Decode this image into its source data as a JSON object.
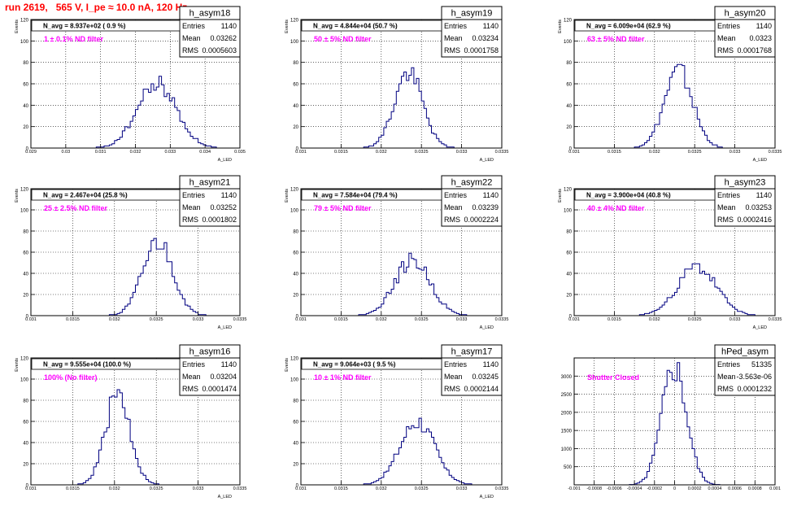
{
  "page_title": "run 2619,   565 V, I_pe ≈ 10.0 nA, 120 Hz",
  "colors": {
    "title": "#ff0000",
    "filter_text": "#ff00ff",
    "histogram": "#000080",
    "grid": "#000000",
    "frame": "#000000",
    "background": "#ffffff"
  },
  "chart_data": [
    {
      "type": "bar",
      "name": "h_asym18",
      "navg": "N_avg = 8.937e+02 ( 0.9 %)",
      "filter": "1 ± 0.1% ND filter",
      "stats": [
        [
          "Entries",
          "1140"
        ],
        [
          "Mean",
          "0.03262"
        ],
        [
          "RMS",
          "0.0005603"
        ]
      ],
      "ylabel": "Events",
      "xlabel": "A_LED",
      "xlim": [
        0.029,
        0.035
      ],
      "ylim": [
        0,
        120
      ],
      "yticks": [
        0,
        20,
        40,
        60,
        80,
        100,
        120
      ],
      "xticks": [
        "0.029",
        "0.03",
        "0.031",
        "0.032",
        "0.033",
        "0.034",
        "0.035"
      ],
      "xtick_values": [
        0.029,
        0.03,
        0.031,
        0.032,
        0.033,
        0.034,
        0.035
      ],
      "mean": 0.03262,
      "sigma": 0.0005603,
      "peak": 60,
      "seed": 18,
      "grid": true
    },
    {
      "type": "bar",
      "name": "h_asym19",
      "navg": "N_avg = 4.844e+04 (50.7 %)",
      "filter": "50 ± 5% ND filter",
      "stats": [
        [
          "Entries",
          "1140"
        ],
        [
          "Mean",
          "0.03234"
        ],
        [
          "RMS",
          "0.0001758"
        ]
      ],
      "ylabel": "Events",
      "xlabel": "A_LED",
      "xlim": [
        0.031,
        0.0335
      ],
      "ylim": [
        0,
        120
      ],
      "yticks": [
        0,
        20,
        40,
        60,
        80,
        100,
        120
      ],
      "xticks": [
        "0.031",
        "0.0315",
        "0.032",
        "0.0325",
        "0.033",
        "0.0335"
      ],
      "xtick_values": [
        0.031,
        0.0315,
        0.032,
        0.0325,
        0.033,
        0.0335
      ],
      "mean": 0.03234,
      "sigma": 0.0001758,
      "peak": 70,
      "seed": 19,
      "grid": true
    },
    {
      "type": "bar",
      "name": "h_asym20",
      "navg": "N_avg = 6.009e+04 (62.9 %)",
      "filter": "63 ± 5% ND filter",
      "stats": [
        [
          "Entries",
          "1140"
        ],
        [
          "Mean",
          "0.0323"
        ],
        [
          "RMS",
          "0.0001768"
        ]
      ],
      "ylabel": "Events",
      "xlabel": "A_LED",
      "xlim": [
        0.031,
        0.0335
      ],
      "ylim": [
        0,
        120
      ],
      "yticks": [
        0,
        20,
        40,
        60,
        80,
        100,
        120
      ],
      "xticks": [
        "0.031",
        "0.0315",
        "0.032",
        "0.0325",
        "0.033",
        "0.0335"
      ],
      "xtick_values": [
        0.031,
        0.0315,
        0.032,
        0.0325,
        0.033,
        0.0335
      ],
      "mean": 0.0323,
      "sigma": 0.0001768,
      "peak": 72,
      "seed": 20,
      "grid": true
    },
    {
      "type": "bar",
      "name": "h_asym21",
      "navg": "N_avg = 2.467e+04 (25.8 %)",
      "filter": "25 ± 2.5% ND filter",
      "stats": [
        [
          "Entries",
          "1140"
        ],
        [
          "Mean",
          "0.03252"
        ],
        [
          "RMS",
          "0.0001802"
        ]
      ],
      "ylabel": "Events",
      "xlabel": "A_LED",
      "xlim": [
        0.031,
        0.0335
      ],
      "ylim": [
        0,
        120
      ],
      "yticks": [
        0,
        20,
        40,
        60,
        80,
        100,
        120
      ],
      "xticks": [
        "0.031",
        "0.0315",
        "0.032",
        "0.0325",
        "0.033",
        "0.0335"
      ],
      "xtick_values": [
        0.031,
        0.0315,
        0.032,
        0.0325,
        0.033,
        0.0335
      ],
      "mean": 0.03252,
      "sigma": 0.0001802,
      "peak": 70,
      "seed": 21,
      "grid": true
    },
    {
      "type": "bar",
      "name": "h_asym22",
      "navg": "N_avg = 7.584e+04 (79.4 %)",
      "filter": "79 ± 5% ND filter",
      "stats": [
        [
          "Entries",
          "1140"
        ],
        [
          "Mean",
          "0.03239"
        ],
        [
          "RMS",
          "0.0002224"
        ]
      ],
      "ylabel": "Events",
      "xlabel": "A_LED",
      "xlim": [
        0.031,
        0.0335
      ],
      "ylim": [
        0,
        120
      ],
      "yticks": [
        0,
        20,
        40,
        60,
        80,
        100,
        120
      ],
      "xticks": [
        "0.031",
        "0.0315",
        "0.032",
        "0.0325",
        "0.033",
        "0.0335"
      ],
      "xtick_values": [
        0.031,
        0.0315,
        0.032,
        0.0325,
        0.033,
        0.0335
      ],
      "mean": 0.03239,
      "sigma": 0.0002224,
      "peak": 52,
      "seed": 22,
      "grid": true
    },
    {
      "type": "bar",
      "name": "h_asym23",
      "navg": "N_avg = 3.900e+04 (40.8 %)",
      "filter": "40 ± 4% ND filter",
      "stats": [
        [
          "Entries",
          "1140"
        ],
        [
          "Mean",
          "0.03253"
        ],
        [
          "RMS",
          "0.0002416"
        ]
      ],
      "ylabel": "Events",
      "xlabel": "A_LED",
      "xlim": [
        0.031,
        0.0335
      ],
      "ylim": [
        0,
        120
      ],
      "yticks": [
        0,
        20,
        40,
        60,
        80,
        100,
        120
      ],
      "xticks": [
        "0.031",
        "0.0315",
        "0.032",
        "0.0325",
        "0.033",
        "0.0335"
      ],
      "xtick_values": [
        0.031,
        0.0315,
        0.032,
        0.0325,
        0.033,
        0.0335
      ],
      "mean": 0.03253,
      "sigma": 0.0002416,
      "peak": 46,
      "seed": 23,
      "grid": true
    },
    {
      "type": "bar",
      "name": "h_asym16",
      "navg": "N_avg = 9.555e+04 (100.0 %)",
      "filter": "100% (No filter)",
      "stats": [
        [
          "Entries",
          "1140"
        ],
        [
          "Mean",
          "0.03204"
        ],
        [
          "RMS",
          "0.0001474"
        ]
      ],
      "ylabel": "Events",
      "xlabel": "A_LED",
      "xlim": [
        0.031,
        0.0335
      ],
      "ylim": [
        0,
        120
      ],
      "yticks": [
        0,
        20,
        40,
        60,
        80,
        100,
        120
      ],
      "xticks": [
        "0.031",
        "0.0315",
        "0.032",
        "0.0325",
        "0.033",
        "0.0335"
      ],
      "xtick_values": [
        0.031,
        0.0315,
        0.032,
        0.0325,
        0.033,
        0.0335
      ],
      "mean": 0.03204,
      "sigma": 0.0001474,
      "peak": 86,
      "seed": 16,
      "grid": true
    },
    {
      "type": "bar",
      "name": "h_asym17",
      "navg": "N_avg = 9.064e+03 ( 9.5 %)",
      "filter": "10 ± 1% ND filter",
      "stats": [
        [
          "Entries",
          "1140"
        ],
        [
          "Mean",
          "0.03245"
        ],
        [
          "RMS",
          "0.0002144"
        ]
      ],
      "ylabel": "Events",
      "xlabel": "A_LED",
      "xlim": [
        0.031,
        0.0335
      ],
      "ylim": [
        0,
        120
      ],
      "yticks": [
        0,
        20,
        40,
        60,
        80,
        100,
        120
      ],
      "xticks": [
        "0.031",
        "0.0315",
        "0.032",
        "0.0325",
        "0.033",
        "0.0335"
      ],
      "xtick_values": [
        0.031,
        0.0315,
        0.032,
        0.0325,
        0.033,
        0.0335
      ],
      "mean": 0.03245,
      "sigma": 0.0002144,
      "peak": 60,
      "seed": 17,
      "grid": true
    },
    {
      "type": "bar",
      "name": "hPed_asym",
      "navg": "",
      "filter": "Shutter Closed",
      "stats": [
        [
          "Entries",
          "51335"
        ],
        [
          "Mean",
          "-3.563e-06"
        ],
        [
          "RMS",
          "0.0001232"
        ]
      ],
      "ylabel": "",
      "xlabel": "",
      "xlim": [
        -0.001,
        0.001
      ],
      "ylim": [
        0,
        3500
      ],
      "yticks": [
        500,
        1000,
        1500,
        2000,
        2500,
        3000
      ],
      "xticks": [
        "-0.001",
        "-0.0008",
        "-0.0006",
        "-0.0004",
        "-0.0002",
        "0",
        "0.0002",
        "0.0004",
        "0.0006",
        "0.0008",
        "0.001"
      ],
      "xtick_values": [
        -0.001,
        -0.0008,
        -0.0006,
        -0.0004,
        -0.0002,
        0,
        0.0002,
        0.0004,
        0.0006,
        0.0008,
        0.001
      ],
      "mean": -3.563e-06,
      "sigma": 0.0001232,
      "peak": 3250,
      "seed": 5,
      "grid": true
    }
  ]
}
